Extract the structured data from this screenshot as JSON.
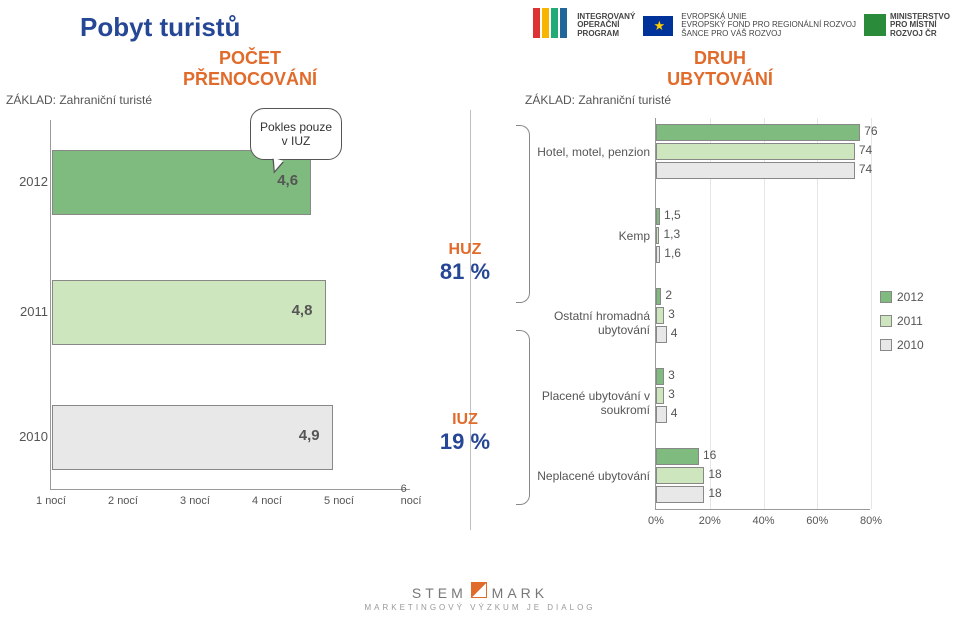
{
  "title": "Pobyt turistů",
  "left": {
    "subtitle_l1": "POČET",
    "subtitle_l2": "PŘENOCOVÁNÍ",
    "base": "ZÁKLAD: Zahraniční turisté",
    "xticks": [
      "1 nocí",
      "2 nocí",
      "3 nocí",
      "4 nocí",
      "5 nocí",
      "6 nocí"
    ],
    "xlim": [
      1,
      6
    ],
    "bars": [
      {
        "cat": "2012",
        "value": 4.6,
        "label": "4,6",
        "color": "#7fba7f"
      },
      {
        "cat": "2011",
        "value": 4.8,
        "label": "4,8",
        "color": "#cde6be"
      },
      {
        "cat": "2010",
        "value": 4.9,
        "label": "4,9",
        "color": "#e8e8e8"
      }
    ],
    "callout": "Pokles pouze v IUZ"
  },
  "mid": {
    "huz": {
      "label": "HUZ",
      "pct": "81 %"
    },
    "iuz": {
      "label": "IUZ",
      "pct": "19 %"
    }
  },
  "right": {
    "subtitle_l1": "DRUH",
    "subtitle_l2": "UBYTOVÁNÍ",
    "base": "ZÁKLAD: Zahraniční turisté",
    "xlim": [
      0,
      80
    ],
    "xtick_step": 20,
    "xticks": [
      "0%",
      "20%",
      "40%",
      "60%",
      "80%"
    ],
    "categories": [
      {
        "label": "Hotel, motel, penzion",
        "values": [
          76,
          74,
          74
        ]
      },
      {
        "label": "Kemp",
        "values": [
          1.5,
          1.3,
          1.6
        ],
        "labels": [
          "1,5",
          "1,3",
          "1,6"
        ]
      },
      {
        "label": "Ostatní hromadná ubytování",
        "values": [
          2,
          3,
          4
        ]
      },
      {
        "label": "Placené ubytování v soukromí",
        "values": [
          3,
          3,
          4
        ]
      },
      {
        "label": "Neplacené ubytování",
        "values": [
          16,
          18,
          18
        ]
      }
    ],
    "series": [
      {
        "name": "2012",
        "color": "#7fba7f"
      },
      {
        "name": "2011",
        "color": "#cde6be"
      },
      {
        "name": "2010",
        "color": "#e8e8e8"
      }
    ]
  },
  "header": {
    "iop_l1": "INTEGROVANÝ",
    "iop_l2": "OPERAČNÍ",
    "iop_l3": "PROGRAM",
    "eu_l1": "EVROPSKÁ UNIE",
    "eu_l2": "EVROPSKÝ FOND PRO REGIONÁLNÍ ROZVOJ",
    "eu_l3": "ŠANCE PRO VÁŠ ROZVOJ",
    "mmr_l1": "MINISTERSTVO",
    "mmr_l2": "PRO MÍSTNÍ",
    "mmr_l3": "ROZVOJ ČR"
  },
  "footer": {
    "brand_l1": "STEM",
    "brand_l2": "MARK",
    "tagline": "MARKETINGOVÝ VÝZKUM JE DIALOG"
  }
}
